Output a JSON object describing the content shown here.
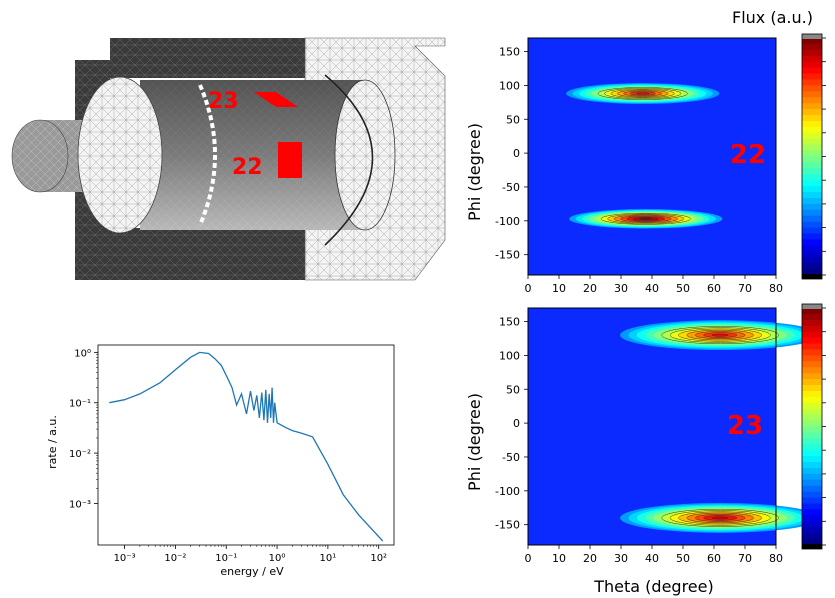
{
  "figure": {
    "mesh_labels": [
      "23",
      "22"
    ],
    "colorbar_title": "Flux (a.u.)",
    "colors": {
      "mesh_dark": "#3a3a3a",
      "mesh_mid": "#8a8a8a",
      "mesh_light": "#f2f2f2",
      "highlight_red": "#ff0000",
      "map_background": "#0032ff",
      "spectrum_line": "#1f77b4"
    }
  },
  "chart_data": [
    {
      "type": "line",
      "name": "spectrum",
      "xlabel": "energy / eV",
      "ylabel": "rate / a.u.",
      "xscale": "log",
      "yscale": "log",
      "xlim": [
        0.0003,
        200
      ],
      "ylim": [
        0.00015,
        1.4
      ],
      "xticks": [
        0.001,
        0.01,
        0.1,
        1,
        10,
        100
      ],
      "xtick_labels": [
        "10⁻³",
        "10⁻²",
        "10⁻¹",
        "10⁰",
        "10¹",
        "10²"
      ],
      "yticks": [
        0.001,
        0.01,
        0.1,
        1
      ],
      "ytick_labels": [
        "10⁻³",
        "10⁻²",
        "10⁻¹",
        "10⁰"
      ],
      "grid": false,
      "x": [
        0.0005,
        0.001,
        0.002,
        0.005,
        0.01,
        0.02,
        0.03,
        0.045,
        0.06,
        0.08,
        0.1,
        0.13,
        0.16,
        0.2,
        0.25,
        0.3,
        0.35,
        0.4,
        0.45,
        0.5,
        0.55,
        0.6,
        0.65,
        0.7,
        0.75,
        0.8,
        0.85,
        0.9,
        1.0,
        1.5,
        2,
        3,
        5,
        10,
        20,
        40,
        80,
        120
      ],
      "y": [
        0.1,
        0.115,
        0.15,
        0.25,
        0.45,
        0.8,
        1.0,
        0.95,
        0.75,
        0.55,
        0.35,
        0.2,
        0.09,
        0.15,
        0.06,
        0.17,
        0.07,
        0.14,
        0.05,
        0.16,
        0.045,
        0.18,
        0.04,
        0.15,
        0.05,
        0.2,
        0.04,
        0.1,
        0.04,
        0.032,
        0.028,
        0.025,
        0.021,
        0.006,
        0.0015,
        0.0006,
        0.00028,
        0.00018
      ]
    },
    {
      "type": "heatmap",
      "name": "flux-map-22",
      "panel_label": "22",
      "xlabel": "",
      "ylabel": "Phi (degree)",
      "xlim": [
        0,
        80
      ],
      "ylim": [
        -180,
        170
      ],
      "xticks": [
        0,
        10,
        20,
        30,
        40,
        50,
        60,
        70,
        80
      ],
      "yticks": [
        -150,
        -100,
        -50,
        0,
        50,
        100,
        150
      ],
      "hotspots": [
        {
          "theta": 37,
          "phi": 88,
          "theta_half_width": 13,
          "phi_half_width": 14,
          "peak": 0.85
        },
        {
          "theta": 38,
          "phi": -97,
          "theta_half_width": 13,
          "phi_half_width": 13,
          "peak": 1.0
        }
      ]
    },
    {
      "type": "heatmap",
      "name": "flux-map-23",
      "panel_label": "23",
      "xlabel": "Theta (degree)",
      "ylabel": "Phi (degree)",
      "xlim": [
        0,
        80
      ],
      "ylim": [
        -180,
        170
      ],
      "xticks": [
        0,
        10,
        20,
        30,
        40,
        50,
        60,
        70,
        80
      ],
      "yticks": [
        -150,
        -100,
        -50,
        0,
        50,
        100,
        150
      ],
      "hotspots": [
        {
          "theta": 62,
          "phi": 130,
          "theta_half_width": 17,
          "phi_half_width": 20,
          "peak": 0.85
        },
        {
          "theta": 62,
          "phi": -140,
          "theta_half_width": 17,
          "phi_half_width": 20,
          "peak": 0.9
        }
      ]
    }
  ]
}
